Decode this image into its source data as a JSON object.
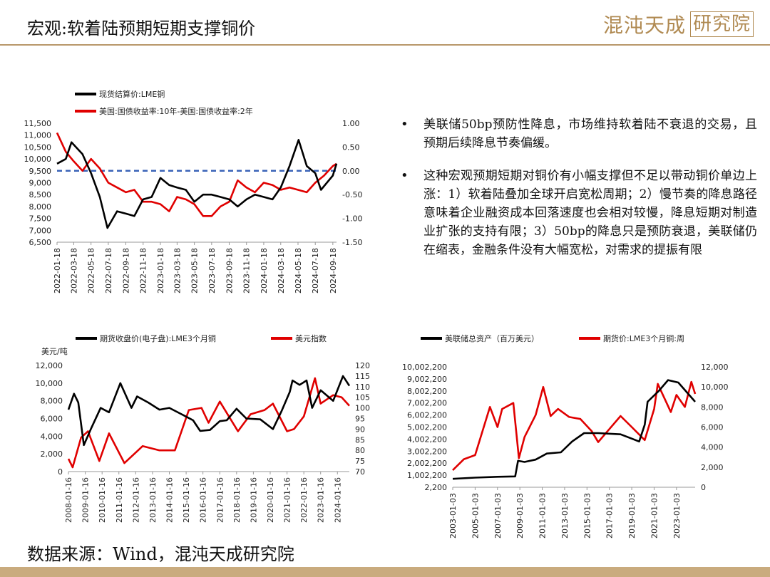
{
  "header": {
    "title": "宏观:软着陆预期短期支撑铜价",
    "logo_text": "混沌天成",
    "logo_box": "研究院"
  },
  "bullets": [
    "美联储50bp预防性降息，市场维持软着陆不衰退的交易，且预期后续降息节奏偏缓。",
    "这种宏观预期短期对铜价有小幅支撑但不足以带动铜价单边上涨：1）软着陆叠加全球开启宽松周期；2）慢节奏的降息路径意味着企业融资成本回落速度也会相对较慢，降息短期对制造业扩张的支持有限；3）50bp的降息只是预防衰退，美联储仍在缩表，金融条件没有大幅宽松，对需求的提振有限"
  ],
  "source": "数据来源：Wind，混沌天成研究院",
  "colors": {
    "black": "#000000",
    "red": "#e00000",
    "dash": "#3a63b8",
    "accent": "#b8986a"
  },
  "chart_data": [
    {
      "type": "line",
      "title": "",
      "series": [
        {
          "name": "现货结算价:LME铜",
          "axis": "left",
          "x": [
            "2022-01-18",
            "2022-02-18",
            "2022-03-10",
            "2022-04-18",
            "2022-05-18",
            "2022-06-18",
            "2022-07-15",
            "2022-08-18",
            "2022-09-18",
            "2022-10-18",
            "2022-11-18",
            "2022-12-18",
            "2023-01-18",
            "2023-02-18",
            "2023-03-18",
            "2023-04-18",
            "2023-05-18",
            "2023-06-18",
            "2023-07-18",
            "2023-08-18",
            "2023-09-18",
            "2023-10-18",
            "2023-11-18",
            "2023-12-18",
            "2024-01-18",
            "2024-02-18",
            "2024-03-18",
            "2024-04-18",
            "2024-05-20",
            "2024-06-18",
            "2024-07-18",
            "2024-08-07",
            "2024-09-18",
            "2024-10-01"
          ],
          "values": [
            9800,
            10000,
            10700,
            10200,
            9400,
            8400,
            7100,
            7800,
            7700,
            7600,
            8300,
            8400,
            9200,
            8900,
            8800,
            8700,
            8200,
            8500,
            8500,
            8400,
            8300,
            8000,
            8300,
            8500,
            8400,
            8300,
            8800,
            9700,
            10800,
            9700,
            9400,
            8700,
            9300,
            9800
          ]
        },
        {
          "name": "美国:国债收益率:10年-美国:国债收益率:2年",
          "axis": "right",
          "x": [
            "2022-01-18",
            "2022-02-18",
            "2022-03-18",
            "2022-04-18",
            "2022-05-18",
            "2022-06-18",
            "2022-07-18",
            "2022-08-18",
            "2022-09-18",
            "2022-10-18",
            "2022-11-18",
            "2022-12-18",
            "2023-01-18",
            "2023-02-18",
            "2023-03-18",
            "2023-04-18",
            "2023-05-18",
            "2023-06-18",
            "2023-07-18",
            "2023-08-18",
            "2023-09-18",
            "2023-10-18",
            "2023-11-18",
            "2023-12-18",
            "2024-01-18",
            "2024-02-18",
            "2024-03-18",
            "2024-04-18",
            "2024-05-18",
            "2024-06-18",
            "2024-07-18",
            "2024-08-18",
            "2024-09-18",
            "2024-10-01"
          ],
          "values": [
            0.8,
            0.4,
            0.2,
            0.0,
            0.25,
            0.05,
            -0.25,
            -0.35,
            -0.45,
            -0.4,
            -0.65,
            -0.65,
            -0.7,
            -0.85,
            -0.55,
            -0.6,
            -0.7,
            -0.95,
            -0.95,
            -0.75,
            -0.65,
            -0.2,
            -0.35,
            -0.45,
            -0.25,
            -0.3,
            -0.4,
            -0.35,
            -0.4,
            -0.45,
            -0.25,
            -0.1,
            0.1,
            0.15
          ]
        }
      ],
      "reference_line": {
        "axis": "right",
        "y": 0,
        "style": "dashed"
      },
      "x_ticks": [
        "2022-01-18",
        "2022-03-18",
        "2022-05-18",
        "2022-07-18",
        "2022-09-18",
        "2022-11-18",
        "2023-01-18",
        "2023-03-18",
        "2023-05-18",
        "2023-07-18",
        "2023-09-18",
        "2023-11-18",
        "2024-01-18",
        "2024-03-18",
        "2024-05-18",
        "2024-07-18",
        "2024-09-18"
      ],
      "ylim_left": [
        6500,
        11500
      ],
      "y_ticks_left": [
        "6,500",
        "7,000",
        "7,500",
        "8,000",
        "8,500",
        "9,000",
        "9,500",
        "10,000",
        "10,500",
        "11,000",
        "11,500"
      ],
      "ylim_right": [
        -1.5,
        1.0
      ],
      "y_ticks_right": [
        "-1.50",
        "-1.00",
        "-0.50",
        "0.00",
        "0.50",
        "1.00"
      ],
      "legend": "top-left"
    },
    {
      "type": "line",
      "title": "",
      "ylabel": "美元/吨",
      "series": [
        {
          "name": "期货收盘价(电子盘):LME3个月铜",
          "axis": "left",
          "x": [
            "2008-01-16",
            "2008-05-16",
            "2008-08-16",
            "2008-12-16",
            "2009-05-16",
            "2009-12-16",
            "2010-06-16",
            "2011-02-16",
            "2011-10-16",
            "2012-02-16",
            "2012-10-16",
            "2013-06-16",
            "2014-01-16",
            "2014-12-16",
            "2015-06-16",
            "2015-11-16",
            "2016-06-16",
            "2017-01-16",
            "2017-06-16",
            "2018-01-16",
            "2018-08-16",
            "2019-06-16",
            "2020-03-16",
            "2020-09-16",
            "2021-03-16",
            "2021-05-16",
            "2021-10-16",
            "2022-03-16",
            "2022-07-16",
            "2023-01-16",
            "2023-10-16",
            "2024-05-16",
            "2024-10-01"
          ],
          "values": [
            7000,
            8800,
            7800,
            3000,
            4800,
            7200,
            6700,
            10000,
            7200,
            8500,
            7800,
            7000,
            7200,
            6300,
            5800,
            4600,
            4700,
            5700,
            5800,
            7100,
            6000,
            5900,
            4800,
            6800,
            9000,
            10300,
            9800,
            10300,
            7200,
            9200,
            8000,
            10800,
            9700
          ]
        },
        {
          "name": "美元指数",
          "axis": "right",
          "x": [
            "2008-01-16",
            "2008-04-16",
            "2008-10-16",
            "2009-03-16",
            "2009-11-16",
            "2010-06-16",
            "2011-05-16",
            "2012-06-16",
            "2013-06-16",
            "2014-05-16",
            "2015-03-16",
            "2015-12-16",
            "2016-05-16",
            "2017-01-16",
            "2018-02-16",
            "2018-11-16",
            "2019-09-16",
            "2020-03-16",
            "2021-01-16",
            "2021-06-16",
            "2022-01-16",
            "2022-09-16",
            "2023-01-16",
            "2023-10-16",
            "2024-04-16",
            "2024-10-01"
          ],
          "values": [
            76,
            72,
            86,
            89,
            75,
            88,
            74,
            82,
            80,
            80,
            99,
            100,
            93,
            103,
            89,
            97,
            99,
            102,
            89,
            90,
            96,
            114,
            102,
            106,
            105,
            101
          ]
        }
      ],
      "x_ticks": [
        "2008-01-16",
        "2009-01-16",
        "2010-01-16",
        "2011-01-16",
        "2012-01-16",
        "2013-01-16",
        "2014-01-16",
        "2015-01-16",
        "2016-01-16",
        "2017-01-16",
        "2018-01-16",
        "2019-01-16",
        "2020-01-16",
        "2021-01-16",
        "2022-01-16",
        "2023-01-16",
        "2024-01-16"
      ],
      "ylim_left": [
        0,
        12000
      ],
      "y_ticks_left": [
        "0",
        "2,000",
        "4,000",
        "6,000",
        "8,000",
        "10,000",
        "12,000"
      ],
      "ylim_right": [
        70,
        120
      ],
      "y_ticks_right": [
        "70",
        "75",
        "80",
        "85",
        "90",
        "95",
        "100",
        "105",
        "110",
        "115",
        "120"
      ],
      "legend": "top"
    },
    {
      "type": "line",
      "title": "",
      "series": [
        {
          "name": "美联储总资产（百万美元）",
          "axis": "left",
          "x": [
            "2003-01-03",
            "2005-01-03",
            "2007-01-03",
            "2008-08-03",
            "2008-11-03",
            "2009-06-03",
            "2010-06-03",
            "2011-06-03",
            "2012-09-03",
            "2013-09-03",
            "2014-10-03",
            "2016-01-03",
            "2018-01-03",
            "2019-09-03",
            "2020-03-03",
            "2020-06-03",
            "2021-06-03",
            "2022-04-03",
            "2023-03-03",
            "2024-09-03"
          ],
          "values": [
            700000,
            800000,
            870000,
            900000,
            2200000,
            2100000,
            2300000,
            2800000,
            2900000,
            3800000,
            4500000,
            4500000,
            4400000,
            3800000,
            5200000,
            7100000,
            8000000,
            8900000,
            8700000,
            7100000
          ]
        },
        {
          "name": "期货价:LME3个月铜:周",
          "axis": "right",
          "x": [
            "2003-01-03",
            "2004-01-03",
            "2005-01-03",
            "2006-05-03",
            "2007-01-03",
            "2007-06-03",
            "2008-06-03",
            "2008-12-03",
            "2009-06-03",
            "2010-06-03",
            "2011-02-03",
            "2011-10-03",
            "2012-06-03",
            "2013-06-03",
            "2014-06-03",
            "2015-06-03",
            "2016-01-03",
            "2017-01-03",
            "2018-01-03",
            "2019-01-03",
            "2020-03-03",
            "2021-01-03",
            "2021-05-03",
            "2022-07-03",
            "2023-01-03",
            "2023-10-03",
            "2024-05-03",
            "2024-09-03"
          ],
          "values": [
            1700,
            2800,
            3200,
            8000,
            6000,
            7800,
            8400,
            2900,
            5000,
            7200,
            10000,
            7100,
            7800,
            7000,
            6800,
            5600,
            4500,
            5800,
            7100,
            6000,
            4700,
            7800,
            10300,
            7500,
            9200,
            8000,
            10500,
            9300
          ]
        }
      ],
      "x_ticks": [
        "2003-01-03",
        "2005-01-03",
        "2007-01-03",
        "2009-01-03",
        "2011-01-03",
        "2013-01-03",
        "2015-01-03",
        "2017-01-03",
        "2019-01-03",
        "2021-01-03",
        "2023-01-03"
      ],
      "ylim_left": [
        2200,
        10002200
      ],
      "y_ticks_left": [
        "2,200",
        "1,002,200",
        "2,002,200",
        "3,002,200",
        "4,002,200",
        "5,002,200",
        "6,002,200",
        "7,002,200",
        "8,002,200",
        "9,002,200",
        "10,002,200"
      ],
      "ylim_right": [
        0,
        12000
      ],
      "y_ticks_right": [
        "0",
        "2,000",
        "4,000",
        "6,000",
        "8,000",
        "10,000",
        "12,000"
      ],
      "legend": "top"
    }
  ]
}
